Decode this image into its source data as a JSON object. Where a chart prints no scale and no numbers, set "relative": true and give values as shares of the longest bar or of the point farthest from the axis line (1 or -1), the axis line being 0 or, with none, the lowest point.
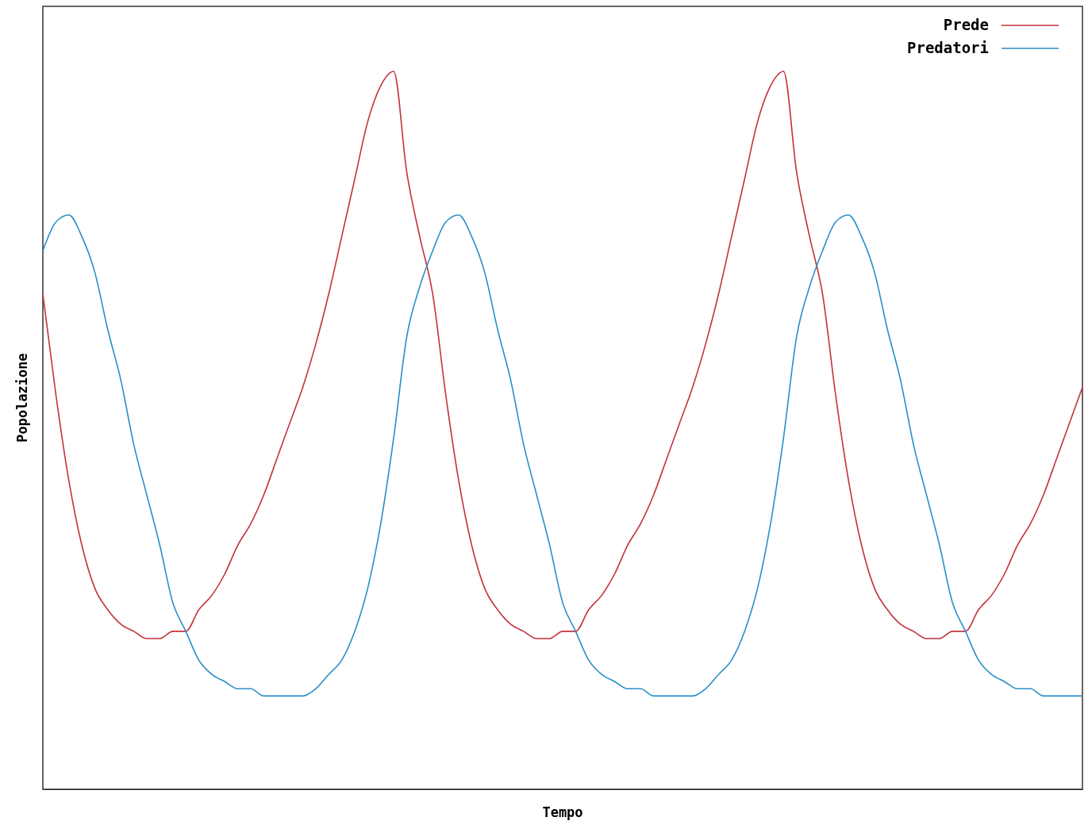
{
  "chart_data": {
    "type": "line",
    "xlabel": "Tempo",
    "ylabel": "Popolazione",
    "relative": true,
    "legend": "top right",
    "marker": "none",
    "line_style": "solid",
    "categories": [
      null,
      null,
      null,
      null,
      null,
      null,
      null,
      null,
      null,
      null,
      null,
      null,
      null,
      null,
      null,
      null,
      null,
      null,
      null,
      null,
      null,
      null,
      null,
      null,
      null,
      null,
      null,
      null,
      null,
      null,
      null,
      null,
      null,
      null,
      null,
      null,
      null,
      null,
      null,
      null,
      null,
      null,
      null,
      null,
      null,
      null,
      null,
      null,
      null,
      null,
      null,
      null,
      null,
      null,
      null,
      null,
      null,
      null,
      null,
      null,
      null,
      null,
      null,
      null,
      null,
      null,
      null,
      null,
      null,
      null,
      null,
      null,
      null,
      null,
      null,
      null,
      null,
      null,
      null,
      null,
      null
    ],
    "series": [
      {
        "name": "Prede",
        "color": "#c4303c",
        "values": [
          0.69,
          0.55,
          0.43,
          0.34,
          0.28,
          0.25,
          0.23,
          0.22,
          0.21,
          0.21,
          0.22,
          0.22,
          0.25,
          0.27,
          0.3,
          0.34,
          0.37,
          0.41,
          0.46,
          0.51,
          0.56,
          0.62,
          0.69,
          0.77,
          0.85,
          0.93,
          0.98,
          1.0,
          0.86,
          0.77,
          0.69,
          0.55,
          0.43,
          0.34,
          0.28,
          0.25,
          0.23,
          0.22,
          0.21,
          0.21,
          0.22,
          0.22,
          0.25,
          0.27,
          0.3,
          0.34,
          0.37,
          0.41,
          0.46,
          0.51,
          0.56,
          0.62,
          0.69,
          0.77,
          0.85,
          0.93,
          0.98,
          1.0,
          0.86,
          0.77,
          0.69,
          0.55,
          0.43,
          0.34,
          0.28,
          0.25,
          0.23,
          0.22,
          0.21,
          0.21,
          0.22,
          0.22,
          0.25,
          0.27,
          0.3,
          0.34,
          0.37,
          0.41,
          0.46,
          0.51,
          0.56
        ]
      },
      {
        "name": "Predatori",
        "color": "#2a8ec8",
        "values": [
          0.75,
          0.79,
          0.8,
          0.77,
          0.72,
          0.64,
          0.57,
          0.48,
          0.41,
          0.34,
          0.26,
          0.22,
          0.18,
          0.16,
          0.15,
          0.14,
          0.14,
          0.13,
          0.13,
          0.13,
          0.13,
          0.14,
          0.16,
          0.18,
          0.22,
          0.28,
          0.37,
          0.49,
          0.63,
          0.7,
          0.75,
          0.79,
          0.8,
          0.77,
          0.72,
          0.64,
          0.57,
          0.48,
          0.41,
          0.34,
          0.26,
          0.22,
          0.18,
          0.16,
          0.15,
          0.14,
          0.14,
          0.13,
          0.13,
          0.13,
          0.13,
          0.14,
          0.16,
          0.18,
          0.22,
          0.28,
          0.37,
          0.49,
          0.63,
          0.7,
          0.75,
          0.79,
          0.8,
          0.77,
          0.72,
          0.64,
          0.57,
          0.48,
          0.41,
          0.34,
          0.26,
          0.22,
          0.18,
          0.16,
          0.15,
          0.14,
          0.14,
          0.13,
          0.13,
          0.13,
          0.13
        ]
      }
    ]
  }
}
